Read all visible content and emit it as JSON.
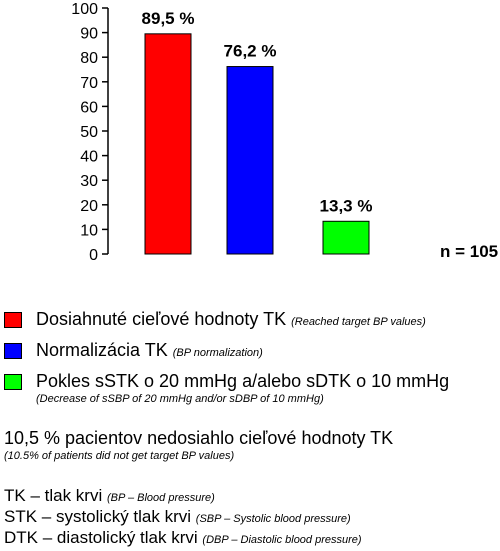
{
  "chart_data": {
    "type": "bar",
    "categories": [
      "Dosiahnuté cieľové hodnoty TK",
      "Normalizácia TK",
      "Pokles sSTK o 20 mmHg a/alebo sDTK o 10 mmHg"
    ],
    "values": [
      89.5,
      76.2,
      13.3
    ],
    "data_labels": [
      "89,5 %",
      "76,2 %",
      "13,3 %"
    ],
    "colors": [
      "#ff0000",
      "#0000ff",
      "#00ff00"
    ],
    "ylim": [
      0,
      100
    ],
    "yticks": [
      "0",
      "10",
      "20",
      "30",
      "40",
      "50",
      "60",
      "70",
      "80",
      "90",
      "100"
    ],
    "annotation": "n = 105",
    "grid": false,
    "legend_placement": "below"
  },
  "legend": [
    {
      "label": "Dosiahnuté cieľové hodnoty TK",
      "sub": "(Reached target BP values)",
      "color": "#ff0000"
    },
    {
      "label": "Normalizácia TK",
      "sub": "(BP normalization)",
      "color": "#0000ff"
    },
    {
      "label": "Pokles sSTK o 20 mmHg a/alebo sDTK o 10 mmHg",
      "sub": "(Decrease of sSBP of 20 mmHg and/or sDBP of 10 mmHg)",
      "color": "#00ff00"
    }
  ],
  "note": {
    "main": "10,5 % pacientov nedosiahlo cieľové hodnoty TK",
    "sub": "(10.5% of patients did not get target BP values)"
  },
  "abbreviations": [
    {
      "main": "TK – tlak krvi",
      "sub": "(BP – Blood pressure)"
    },
    {
      "main": "STK – systolický tlak krvi",
      "sub": "(SBP – Systolic blood pressure)"
    },
    {
      "main": "DTK – diastolický tlak krvi",
      "sub": "(DBP – Diastolic blood pressure)"
    }
  ]
}
